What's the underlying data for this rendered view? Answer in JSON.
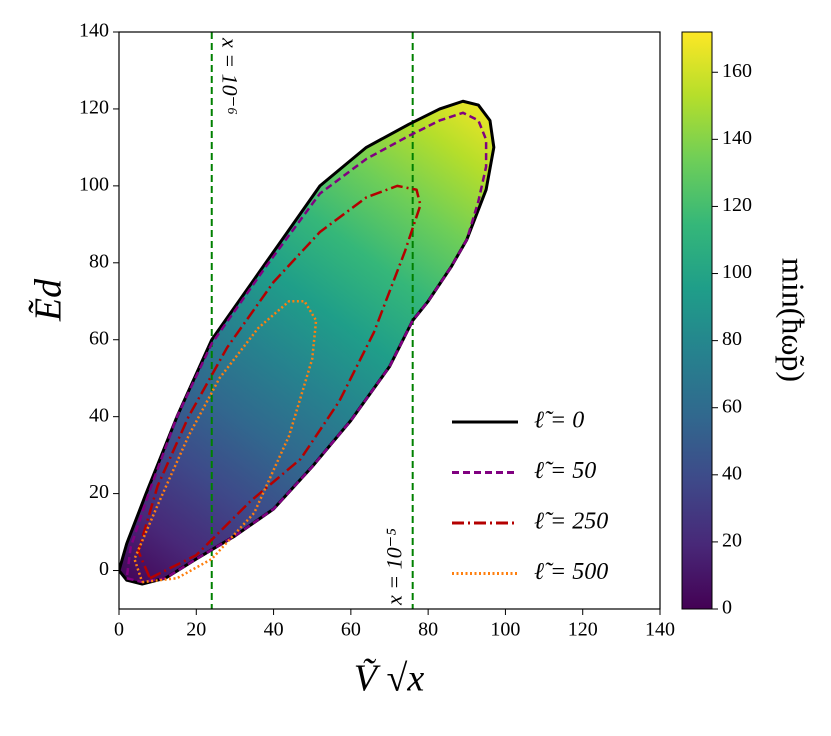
{
  "chart_data": {
    "type": "contour",
    "xlabel": "Ṽ √x",
    "ylabel": "Ẽd",
    "xlim": [
      0,
      140
    ],
    "ylim": [
      -10,
      140
    ],
    "xticks": [
      0,
      20,
      40,
      60,
      80,
      100,
      120,
      140
    ],
    "yticks": [
      0,
      20,
      40,
      60,
      80,
      100,
      120,
      140
    ],
    "series": [
      {
        "name": "ℓ̃ = 0",
        "color": "#000000",
        "linestyle": "solid",
        "filled": true,
        "x": [
          0,
          2,
          6,
          12,
          20,
          30,
          40,
          50,
          60,
          70,
          76,
          80,
          86,
          90,
          95,
          97,
          96,
          93,
          89,
          83,
          75,
          64,
          52,
          38,
          24,
          15,
          7,
          2,
          0
        ],
        "y": [
          0,
          -2.5,
          -3.5,
          -2,
          3,
          9,
          16,
          27,
          39,
          53,
          65,
          70,
          79,
          86,
          99,
          110,
          117,
          121,
          122,
          120,
          116,
          110,
          100,
          80,
          60,
          40,
          20,
          7,
          0
        ]
      },
      {
        "name": "ℓ̃ = 50",
        "color": "#800080",
        "linestyle": "dashed",
        "x": [
          2,
          6,
          12,
          20,
          30,
          40,
          50,
          60,
          70,
          76,
          80,
          86,
          90,
          93,
          95,
          95,
          93,
          89,
          83,
          75,
          64,
          52,
          38,
          24,
          15,
          8,
          3,
          2
        ],
        "y": [
          -2,
          -3,
          -2,
          3,
          9,
          16,
          27,
          39,
          53,
          65,
          70,
          79,
          86,
          96,
          105,
          112,
          117,
          119,
          117,
          113,
          107,
          98,
          79,
          59,
          40,
          21,
          6,
          -2
        ]
      },
      {
        "name": "ℓ̃ = 250",
        "color": "#b40000",
        "linestyle": "dashdot",
        "x": [
          8,
          20,
          34,
          47,
          57,
          66,
          74,
          78,
          77,
          72,
          64,
          52,
          40,
          28,
          18,
          10,
          5,
          8
        ],
        "y": [
          -2,
          4,
          18,
          29,
          44,
          62,
          83,
          95,
          99,
          100,
          97,
          88,
          75,
          58,
          40,
          22,
          5,
          -2
        ]
      },
      {
        "name": "ℓ̃ = 500",
        "color": "#ff7f0e",
        "linestyle": "dotted",
        "x": [
          6,
          15,
          24,
          35,
          44,
          50,
          51,
          48,
          44,
          36,
          26,
          18,
          10,
          4,
          6
        ],
        "y": [
          -3,
          -2,
          3,
          15,
          35,
          55,
          65,
          70,
          70,
          63,
          50,
          35,
          17,
          3,
          -3
        ]
      }
    ],
    "vlines": [
      {
        "x": 24,
        "label": "x = 10⁻⁶",
        "color": "#008000"
      },
      {
        "x": 76,
        "label": "x = 10⁻⁵",
        "color": "#008000"
      }
    ],
    "colorbar": {
      "label": "min(ħω̃p)",
      "lim": [
        0,
        172
      ],
      "ticks": [
        0,
        20,
        40,
        60,
        80,
        100,
        120,
        140,
        160
      ],
      "colormap": [
        "#440154",
        "#482878",
        "#3e4989",
        "#31688e",
        "#26828e",
        "#1f9e89",
        "#35b779",
        "#6ece58",
        "#b5de2b",
        "#fde725"
      ]
    },
    "legend": "lower right"
  }
}
